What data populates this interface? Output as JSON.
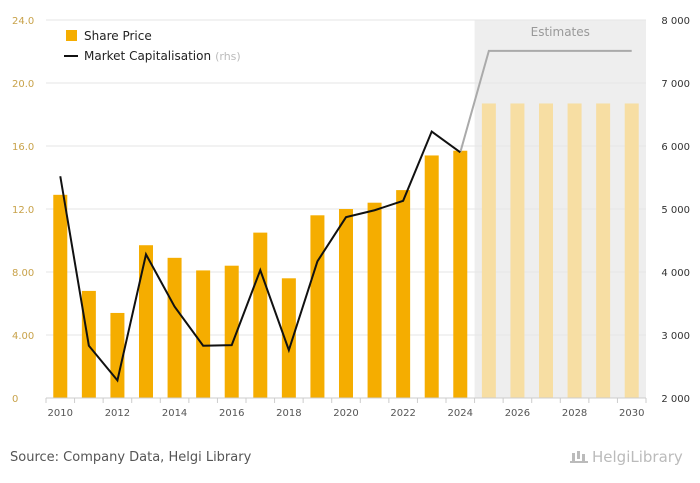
{
  "chart_data": {
    "type": "bar",
    "categories": [
      "2010",
      "2011",
      "2012",
      "2013",
      "2014",
      "2015",
      "2016",
      "2017",
      "2018",
      "2019",
      "2020",
      "2021",
      "2022",
      "2023",
      "2024",
      "2025",
      "2026",
      "2027",
      "2028",
      "2029",
      "2030"
    ],
    "x_tick_labels": [
      "2010",
      "2012",
      "2014",
      "2016",
      "2018",
      "2020",
      "2022",
      "2024",
      "2026",
      "2028",
      "2030"
    ],
    "y_left_ticks": [
      "0",
      "4.00",
      "8.00",
      "12.0",
      "16.0",
      "20.0",
      "24.0"
    ],
    "y_right_ticks": [
      "2 000",
      "3 000",
      "4 000",
      "5 000",
      "6 000",
      "7 000",
      "8 000"
    ],
    "y_left_lim": [
      0,
      24
    ],
    "y_right_lim": [
      2000,
      8000
    ],
    "series": [
      {
        "name": "Share Price",
        "kind": "bar",
        "axis": "left",
        "color": "#f5ad00",
        "estimate_color": "#f7dea3",
        "values": [
          12.9,
          6.8,
          5.4,
          9.7,
          8.9,
          8.1,
          8.4,
          10.5,
          7.6,
          11.6,
          12.0,
          12.4,
          13.2,
          15.4,
          15.7,
          18.7,
          18.7,
          18.7,
          18.7,
          18.7,
          18.7
        ]
      },
      {
        "name": "Market Capitalisation",
        "name_note": "(rhs)",
        "kind": "line",
        "axis": "right",
        "color": "#111111",
        "estimate_color": "#aaaaaa",
        "values": [
          5520,
          2830,
          2280,
          4280,
          3450,
          2830,
          2840,
          4030,
          2760,
          4170,
          4870,
          4980,
          5130,
          6230,
          5900,
          7510,
          7510,
          7510,
          7510,
          7510,
          7510
        ]
      }
    ],
    "estimates_from": "2025",
    "estimates_label": "Estimates",
    "grid": true,
    "legend_position": "top-left"
  },
  "footer": {
    "source": "Source: Company Data, Helgi Library",
    "brand": "HelgiLibrary"
  }
}
